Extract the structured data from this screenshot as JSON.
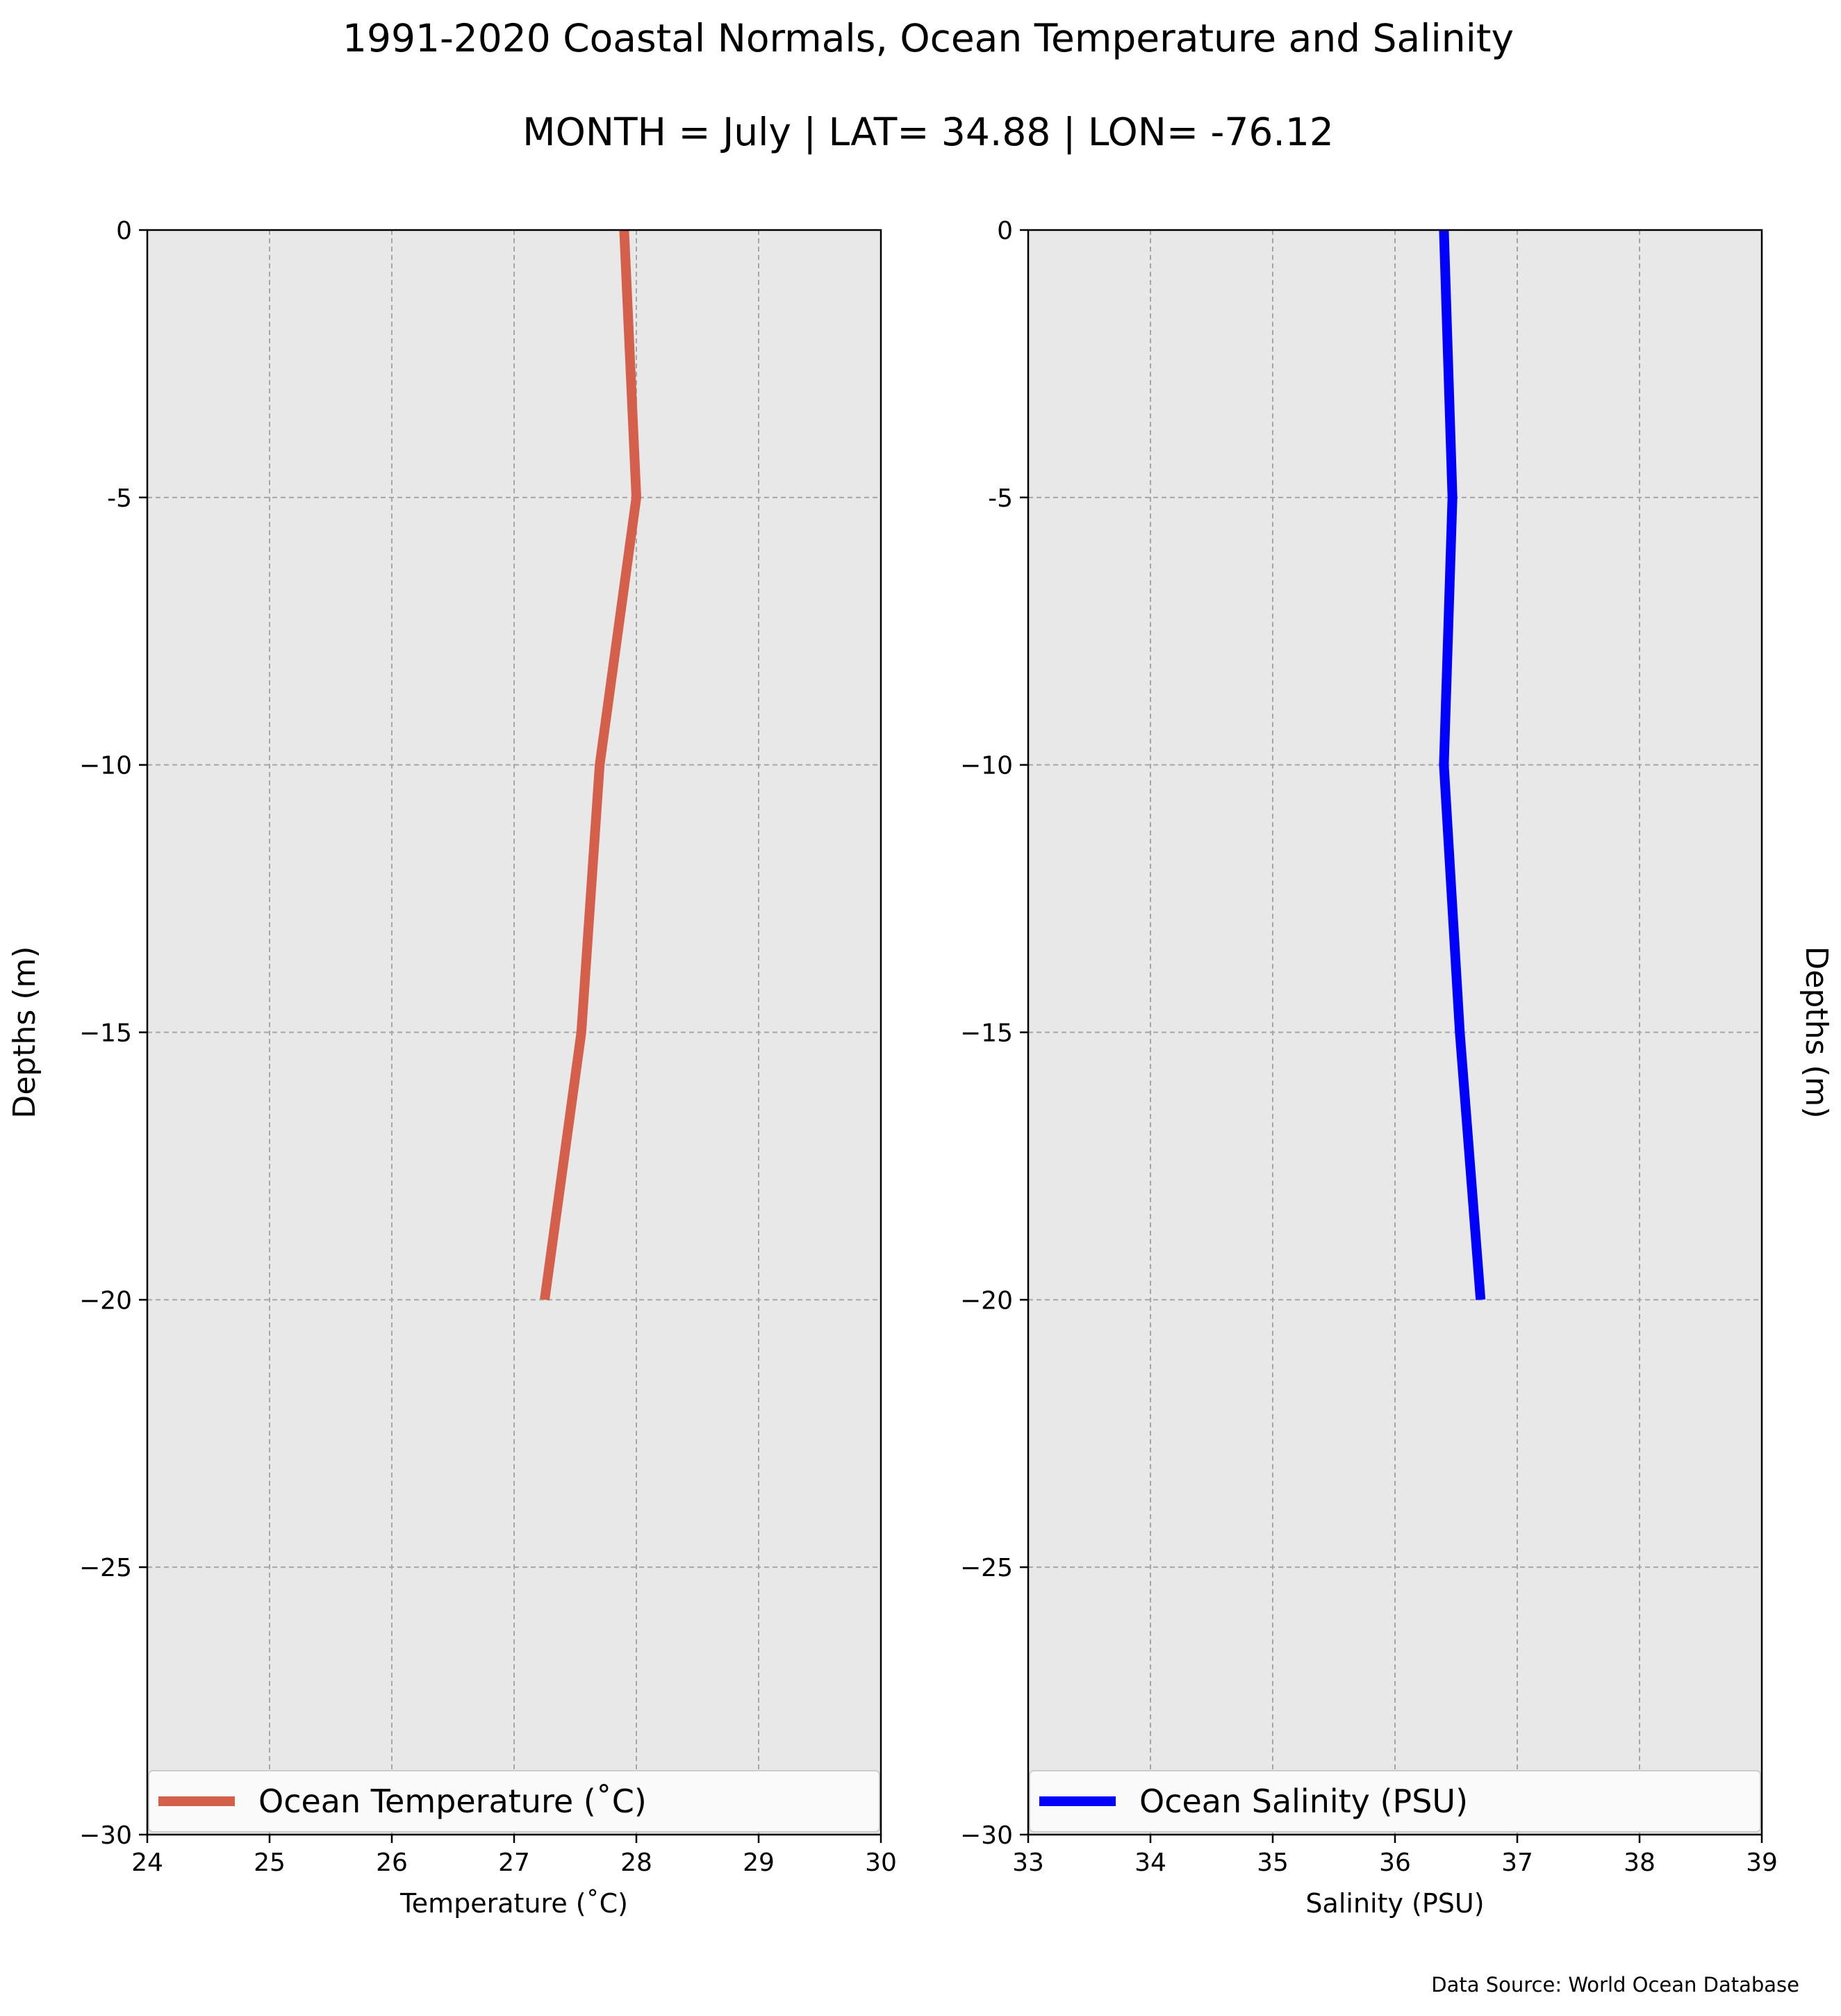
{
  "figure": {
    "title": "1991-2020 Coastal Normals, Ocean Temperature and Salinity",
    "subtitle": "MONTH = July | LAT= 34.88 | LON= -76.12",
    "source": "Data Source: World Ocean Database",
    "background": "#ffffff",
    "panel_background": "#e8e8e8",
    "grid_color": "#a6a6a6"
  },
  "chart_data": [
    {
      "type": "line",
      "xlabel": "Temperature ($^\\circ$C)",
      "xlabel_display": "Temperature (˚C)",
      "ylabel": "Depths (m)",
      "xlim": [
        24,
        30
      ],
      "ylim": [
        -30,
        0
      ],
      "xticks": [
        "24",
        "25",
        "26",
        "27",
        "28",
        "29",
        "30"
      ],
      "yticks": [
        "0",
        "-5",
        "−10",
        "−15",
        "−20",
        "−25",
        "−30"
      ],
      "grid": true,
      "legend": "bottom",
      "series": [
        {
          "name": "Ocean Temperature (˚C)",
          "color": "#d45f4a",
          "x": [
            27.9,
            28.0,
            27.7,
            27.55,
            27.25
          ],
          "y": [
            0,
            -5,
            -10,
            -15,
            -20
          ]
        }
      ]
    },
    {
      "type": "line",
      "xlabel": "Salinity (PSU)",
      "ylabel": "Depths (m)",
      "xlim": [
        33,
        39
      ],
      "ylim": [
        -30,
        0
      ],
      "xticks": [
        "33",
        "34",
        "35",
        "36",
        "37",
        "38",
        "39"
      ],
      "yticks": [
        "0",
        "-5",
        "−10",
        "−15",
        "−20",
        "−25",
        "−30"
      ],
      "grid": true,
      "legend": "bottom",
      "series": [
        {
          "name": "Ocean Salinity (PSU)",
          "color": "#0000ff",
          "x": [
            36.4,
            36.47,
            36.4,
            36.53,
            36.7
          ],
          "y": [
            0,
            -5,
            -10,
            -15,
            -20
          ]
        }
      ]
    }
  ]
}
